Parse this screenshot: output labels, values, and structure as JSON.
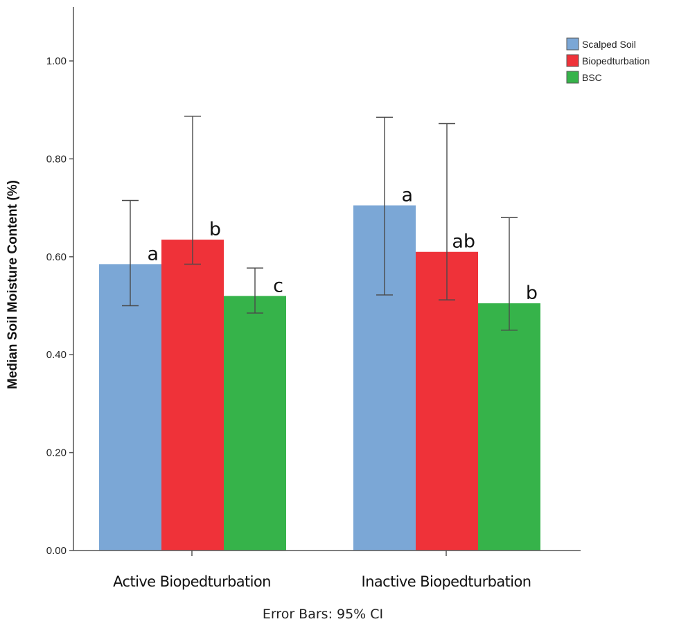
{
  "chart_data": {
    "type": "bar",
    "title": "",
    "xlabel": "",
    "ylabel": "Median Soil Moisture Content (%)",
    "note": "Error Bars: 95% CI",
    "ylim": [
      0,
      1.1
    ],
    "yticks": [
      "0.00",
      "0.20",
      "0.40",
      "0.60",
      "0.80",
      "1.00"
    ],
    "categories": [
      "Active Biopedturbation",
      "Inactive Biopedturbation"
    ],
    "legend_position": "top-right",
    "grid": false,
    "series": [
      {
        "name": "Scalped Soil",
        "color": "#7ba7d6",
        "values": [
          0.585,
          0.705
        ],
        "ci_low": [
          0.5,
          0.522
        ],
        "ci_high": [
          0.715,
          0.885
        ],
        "letters": [
          "a",
          "a"
        ]
      },
      {
        "name": "Biopedturbation",
        "color": "#ef3239",
        "values": [
          0.635,
          0.61
        ],
        "ci_low": [
          0.585,
          0.512
        ],
        "ci_high": [
          0.887,
          0.872
        ],
        "letters": [
          "b",
          "ab"
        ]
      },
      {
        "name": "BSC",
        "color": "#36b34a",
        "values": [
          0.52,
          0.505
        ],
        "ci_low": [
          0.485,
          0.45
        ],
        "ci_high": [
          0.577,
          0.68
        ],
        "letters": [
          "c",
          "b"
        ]
      }
    ]
  }
}
